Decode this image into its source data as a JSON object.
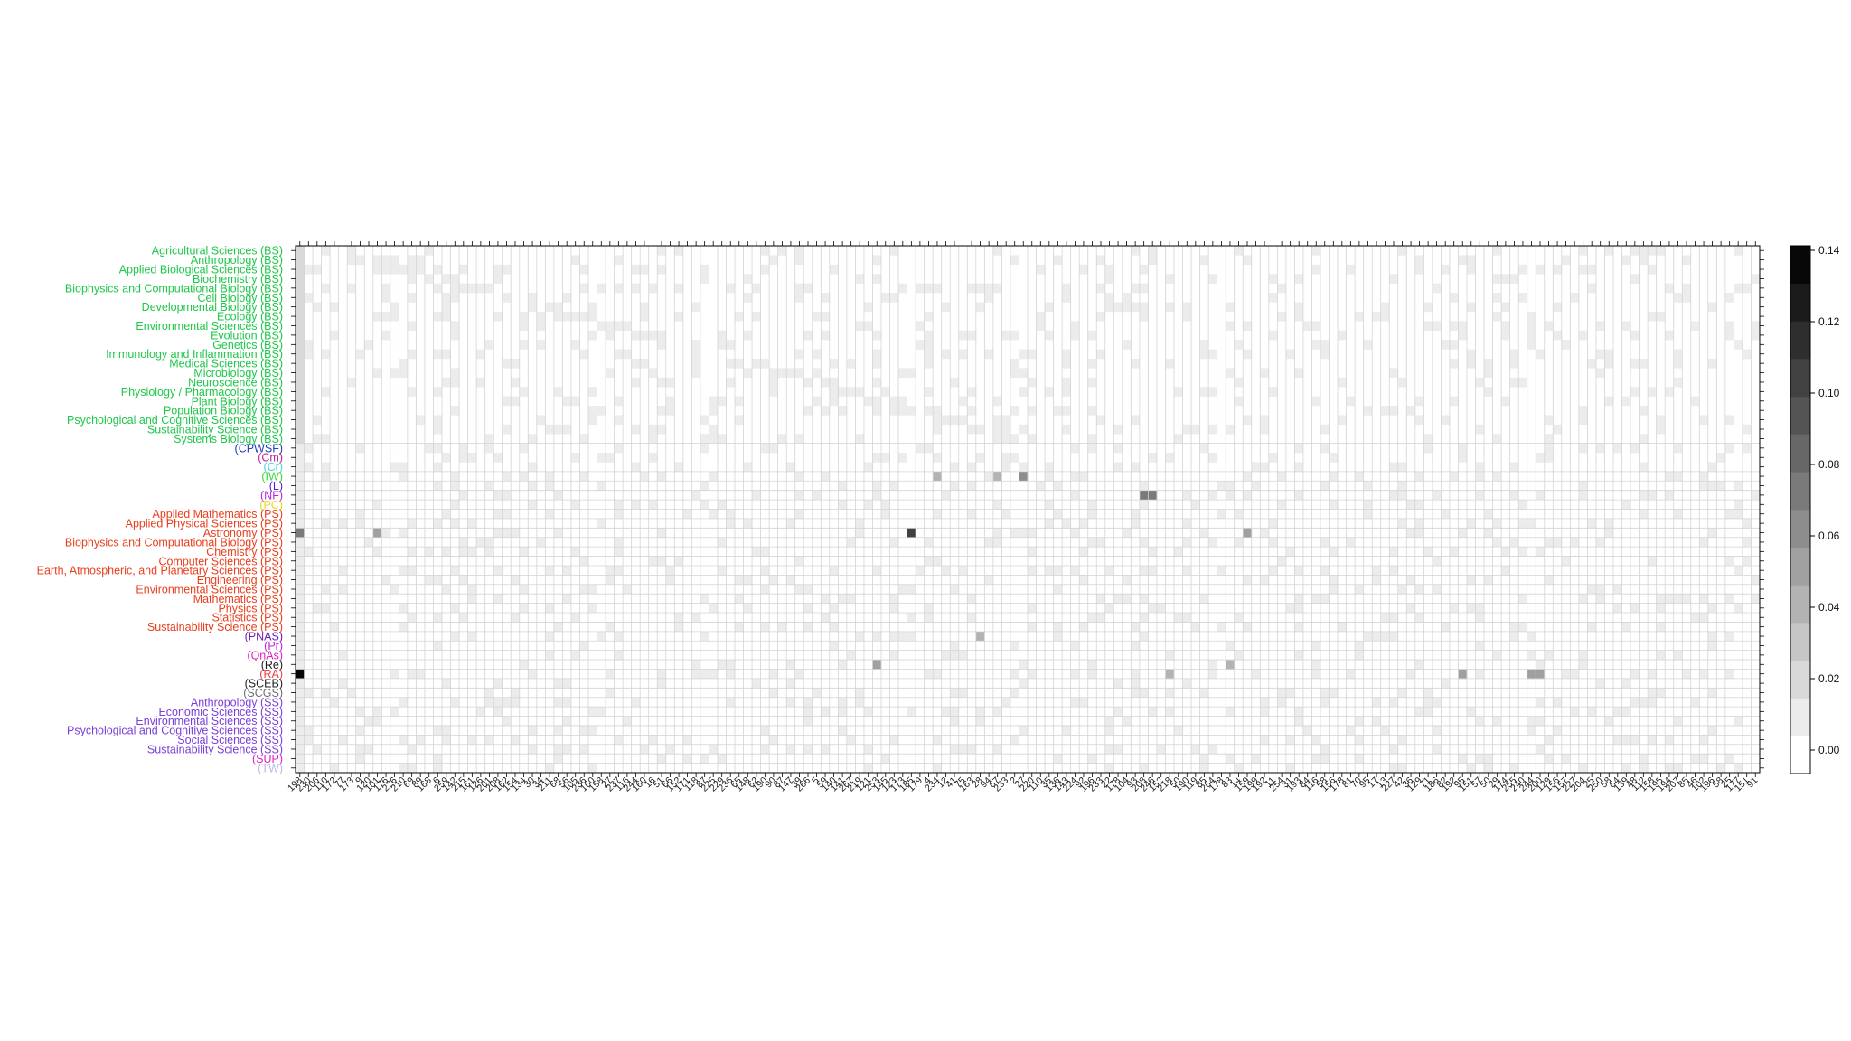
{
  "chart_data": {
    "type": "heatmap",
    "title": "",
    "xlabel": "",
    "ylabel": "",
    "colorbar": {
      "ticks": [
        "0.00",
        "0.02",
        "0.04",
        "0.06",
        "0.08",
        "0.10",
        "0.12",
        "0.14"
      ],
      "range": [
        0,
        0.14
      ],
      "levels": 14,
      "colors": [
        "#ffffff",
        "#ececec",
        "#d9d9d9",
        "#c6c6c6",
        "#b3b3b3",
        "#a0a0a0",
        "#8d8d8d",
        "#7a7a7a",
        "#676767",
        "#545454",
        "#414141",
        "#2e2e2e",
        "#1b1b1b",
        "#080808"
      ]
    },
    "rows": [
      {
        "label": "Agricultural Sciences (BS)",
        "color": "#1fc74a"
      },
      {
        "label": "Anthropology (BS)",
        "color": "#1fc74a"
      },
      {
        "label": "Applied Biological Sciences (BS)",
        "color": "#1fc74a"
      },
      {
        "label": "Biochemistry (BS)",
        "color": "#1fc74a"
      },
      {
        "label": "Biophysics and Computational Biology (BS)",
        "color": "#1fc74a"
      },
      {
        "label": "Cell Biology (BS)",
        "color": "#1fc74a"
      },
      {
        "label": "Developmental Biology (BS)",
        "color": "#1fc74a"
      },
      {
        "label": "Ecology (BS)",
        "color": "#1fc74a"
      },
      {
        "label": "Environmental Sciences (BS)",
        "color": "#1fc74a"
      },
      {
        "label": "Evolution (BS)",
        "color": "#1fc74a"
      },
      {
        "label": "Genetics (BS)",
        "color": "#1fc74a"
      },
      {
        "label": "Immunology and Inflammation (BS)",
        "color": "#1fc74a"
      },
      {
        "label": "Medical Sciences (BS)",
        "color": "#1fc74a"
      },
      {
        "label": "Microbiology (BS)",
        "color": "#1fc74a"
      },
      {
        "label": "Neuroscience (BS)",
        "color": "#1fc74a"
      },
      {
        "label": "Physiology / Pharmacology (BS)",
        "color": "#1fc74a"
      },
      {
        "label": "Plant Biology (BS)",
        "color": "#1fc74a"
      },
      {
        "label": "Population Biology (BS)",
        "color": "#1fc74a"
      },
      {
        "label": "Psychological and Cognitive Sciences (BS)",
        "color": "#1fc74a"
      },
      {
        "label": "Sustainability Science (BS)",
        "color": "#1fc74a"
      },
      {
        "label": "Systems Biology (BS)",
        "color": "#1fc74a"
      },
      {
        "label": "(CPWSF)",
        "color": "#1f3fb8"
      },
      {
        "label": "(Cm)",
        "color": "#c0209a"
      },
      {
        "label": "(Cr)",
        "color": "#40d8d0"
      },
      {
        "label": "(IW)",
        "color": "#3ad83a"
      },
      {
        "label": "(L)",
        "color": "#5a1fd0"
      },
      {
        "label": "(NF)",
        "color": "#c020e0"
      },
      {
        "label": "(PC)",
        "color": "#e8d820"
      },
      {
        "label": "Applied Mathematics (PS)",
        "color": "#e8401f"
      },
      {
        "label": "Applied Physical Sciences (PS)",
        "color": "#e8401f"
      },
      {
        "label": "Astronomy (PS)",
        "color": "#e8401f"
      },
      {
        "label": "Biophysics and Computational Biology (PS)",
        "color": "#e8401f"
      },
      {
        "label": "Chemistry (PS)",
        "color": "#e8401f"
      },
      {
        "label": "Computer Sciences (PS)",
        "color": "#e8401f"
      },
      {
        "label": "Earth, Atmospheric, and Planetary Sciences (PS)",
        "color": "#e8401f"
      },
      {
        "label": "Engineering (PS)",
        "color": "#e8401f"
      },
      {
        "label": "Environmental Sciences (PS)",
        "color": "#e8401f"
      },
      {
        "label": "Mathematics (PS)",
        "color": "#e8401f"
      },
      {
        "label": "Physics (PS)",
        "color": "#e8401f"
      },
      {
        "label": "Statistics (PS)",
        "color": "#e8401f"
      },
      {
        "label": "Sustainability Science (PS)",
        "color": "#e8401f"
      },
      {
        "label": "(PNAS)",
        "color": "#6a1fb8"
      },
      {
        "label": "(Pr)",
        "color": "#c020e0"
      },
      {
        "label": "(QnAs)",
        "color": "#e020c0"
      },
      {
        "label": "(Re)",
        "color": "#202020"
      },
      {
        "label": "(RA)",
        "color": "#e84040"
      },
      {
        "label": "(SCEB)",
        "color": "#202020"
      },
      {
        "label": "(SCGS)",
        "color": "#707070"
      },
      {
        "label": "Anthropology (SS)",
        "color": "#7a40d8"
      },
      {
        "label": "Economic Sciences (SS)",
        "color": "#7a40d8"
      },
      {
        "label": "Environmental Sciences (SS)",
        "color": "#7a40d8"
      },
      {
        "label": "Psychological and Cognitive Sciences (SS)",
        "color": "#7a40d8"
      },
      {
        "label": "Social Sciences (SS)",
        "color": "#7a40d8"
      },
      {
        "label": "Sustainability Science (SS)",
        "color": "#7a40d8"
      },
      {
        "label": "(SUP)",
        "color": "#e020c0"
      },
      {
        "label": "(TW)",
        "color": "#b8b8e8"
      }
    ],
    "columns": [
      "198",
      "230",
      "206",
      "110",
      "172",
      "77",
      "173",
      "9",
      "120",
      "101",
      "176",
      "226",
      "210",
      "69",
      "89",
      "168",
      "6",
      "259",
      "142",
      "215",
      "161",
      "126",
      "201",
      "208",
      "162",
      "154",
      "134",
      "30",
      "34",
      "211",
      "68",
      "56",
      "105",
      "236",
      "160",
      "158",
      "27",
      "237",
      "116",
      "244",
      "160",
      "16",
      "51",
      "66",
      "152",
      "171",
      "118",
      "87",
      "225",
      "229",
      "236",
      "65",
      "148",
      "62",
      "190",
      "90",
      "87",
      "147",
      "39",
      "266",
      "5",
      "59",
      "140",
      "141",
      "267",
      "219",
      "121",
      "253",
      "145",
      "123",
      "173",
      "185",
      "179",
      "4",
      "234",
      "12",
      "41",
      "75",
      "163",
      "28",
      "94",
      "67",
      "233",
      "2",
      "27",
      "220",
      "110",
      "35",
      "136",
      "143",
      "224",
      "92",
      "196",
      "233",
      "22",
      "178",
      "104",
      "93",
      "208",
      "246",
      "152",
      "218",
      "50",
      "190",
      "119",
      "85",
      "264",
      "178",
      "83",
      "14",
      "159",
      "199",
      "192",
      "11",
      "254",
      "31",
      "193",
      "84",
      "116",
      "58",
      "156",
      "178",
      "81",
      "70",
      "95",
      "17",
      "13",
      "227",
      "42",
      "36",
      "129",
      "71",
      "186",
      "82",
      "192",
      "95",
      "151",
      "57",
      "50",
      "29",
      "174",
      "255",
      "240",
      "244",
      "200",
      "129",
      "156",
      "157",
      "227",
      "204",
      "25",
      "250",
      "58",
      "64",
      "139",
      "48",
      "112",
      "158",
      "195",
      "194",
      "207",
      "85",
      "46",
      "102",
      "196",
      "58",
      "25",
      "177",
      "151",
      "91"
    ],
    "values_note": "",
    "dark_cells": [
      {
        "row": 45,
        "col": 0,
        "value": 0.14
      },
      {
        "row": 30,
        "col": 71,
        "value": 0.1
      },
      {
        "row": 30,
        "col": 0,
        "value": 0.07
      },
      {
        "row": 30,
        "col": 9,
        "value": 0.05
      },
      {
        "row": 30,
        "col": 110,
        "value": 0.05
      },
      {
        "row": 26,
        "col": 98,
        "value": 0.07
      },
      {
        "row": 26,
        "col": 99,
        "value": 0.07
      },
      {
        "row": 24,
        "col": 84,
        "value": 0.06
      },
      {
        "row": 24,
        "col": 74,
        "value": 0.04
      },
      {
        "row": 24,
        "col": 81,
        "value": 0.04
      },
      {
        "row": 41,
        "col": 79,
        "value": 0.04
      },
      {
        "row": 44,
        "col": 67,
        "value": 0.05
      },
      {
        "row": 45,
        "col": 135,
        "value": 0.05
      },
      {
        "row": 45,
        "col": 143,
        "value": 0.05
      },
      {
        "row": 45,
        "col": 144,
        "value": 0.05
      },
      {
        "row": 45,
        "col": 101,
        "value": 0.04
      },
      {
        "row": 44,
        "col": 108,
        "value": 0.04
      }
    ]
  }
}
